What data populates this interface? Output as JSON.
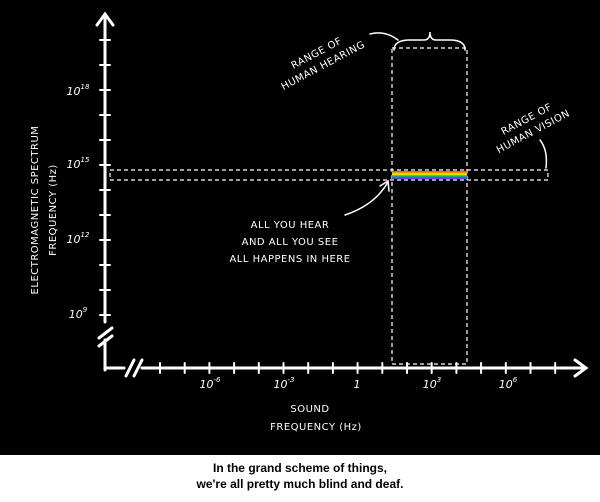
{
  "y_axis": {
    "title": [
      "ELECTROMAGNETIC SPECTRUM",
      "FREQUENCY (Hz)"
    ],
    "ticks": [
      {
        "base": "10",
        "exp": "18"
      },
      {
        "base": "10",
        "exp": "15"
      },
      {
        "base": "10",
        "exp": "12"
      },
      {
        "base": "10",
        "exp": "9"
      }
    ]
  },
  "x_axis": {
    "title": [
      "SOUND",
      "FREQUENCY (Hz)"
    ],
    "ticks": [
      {
        "base": "10",
        "exp": "-6"
      },
      {
        "base": "10",
        "exp": "-3"
      },
      {
        "base": "1"
      },
      {
        "base": "10",
        "exp": "3"
      },
      {
        "base": "10",
        "exp": "6"
      }
    ]
  },
  "annotations": {
    "hearing": [
      "RANGE OF",
      "HUMAN HEARING"
    ],
    "vision": [
      "RANGE OF",
      "HUMAN VISION"
    ],
    "here": [
      "ALL YOU HEAR",
      "AND ALL YOU SEE",
      "ALL HAPPENS IN HERE"
    ]
  },
  "caption": [
    "In the grand scheme of things,",
    "we're all pretty much blind and deaf."
  ]
}
